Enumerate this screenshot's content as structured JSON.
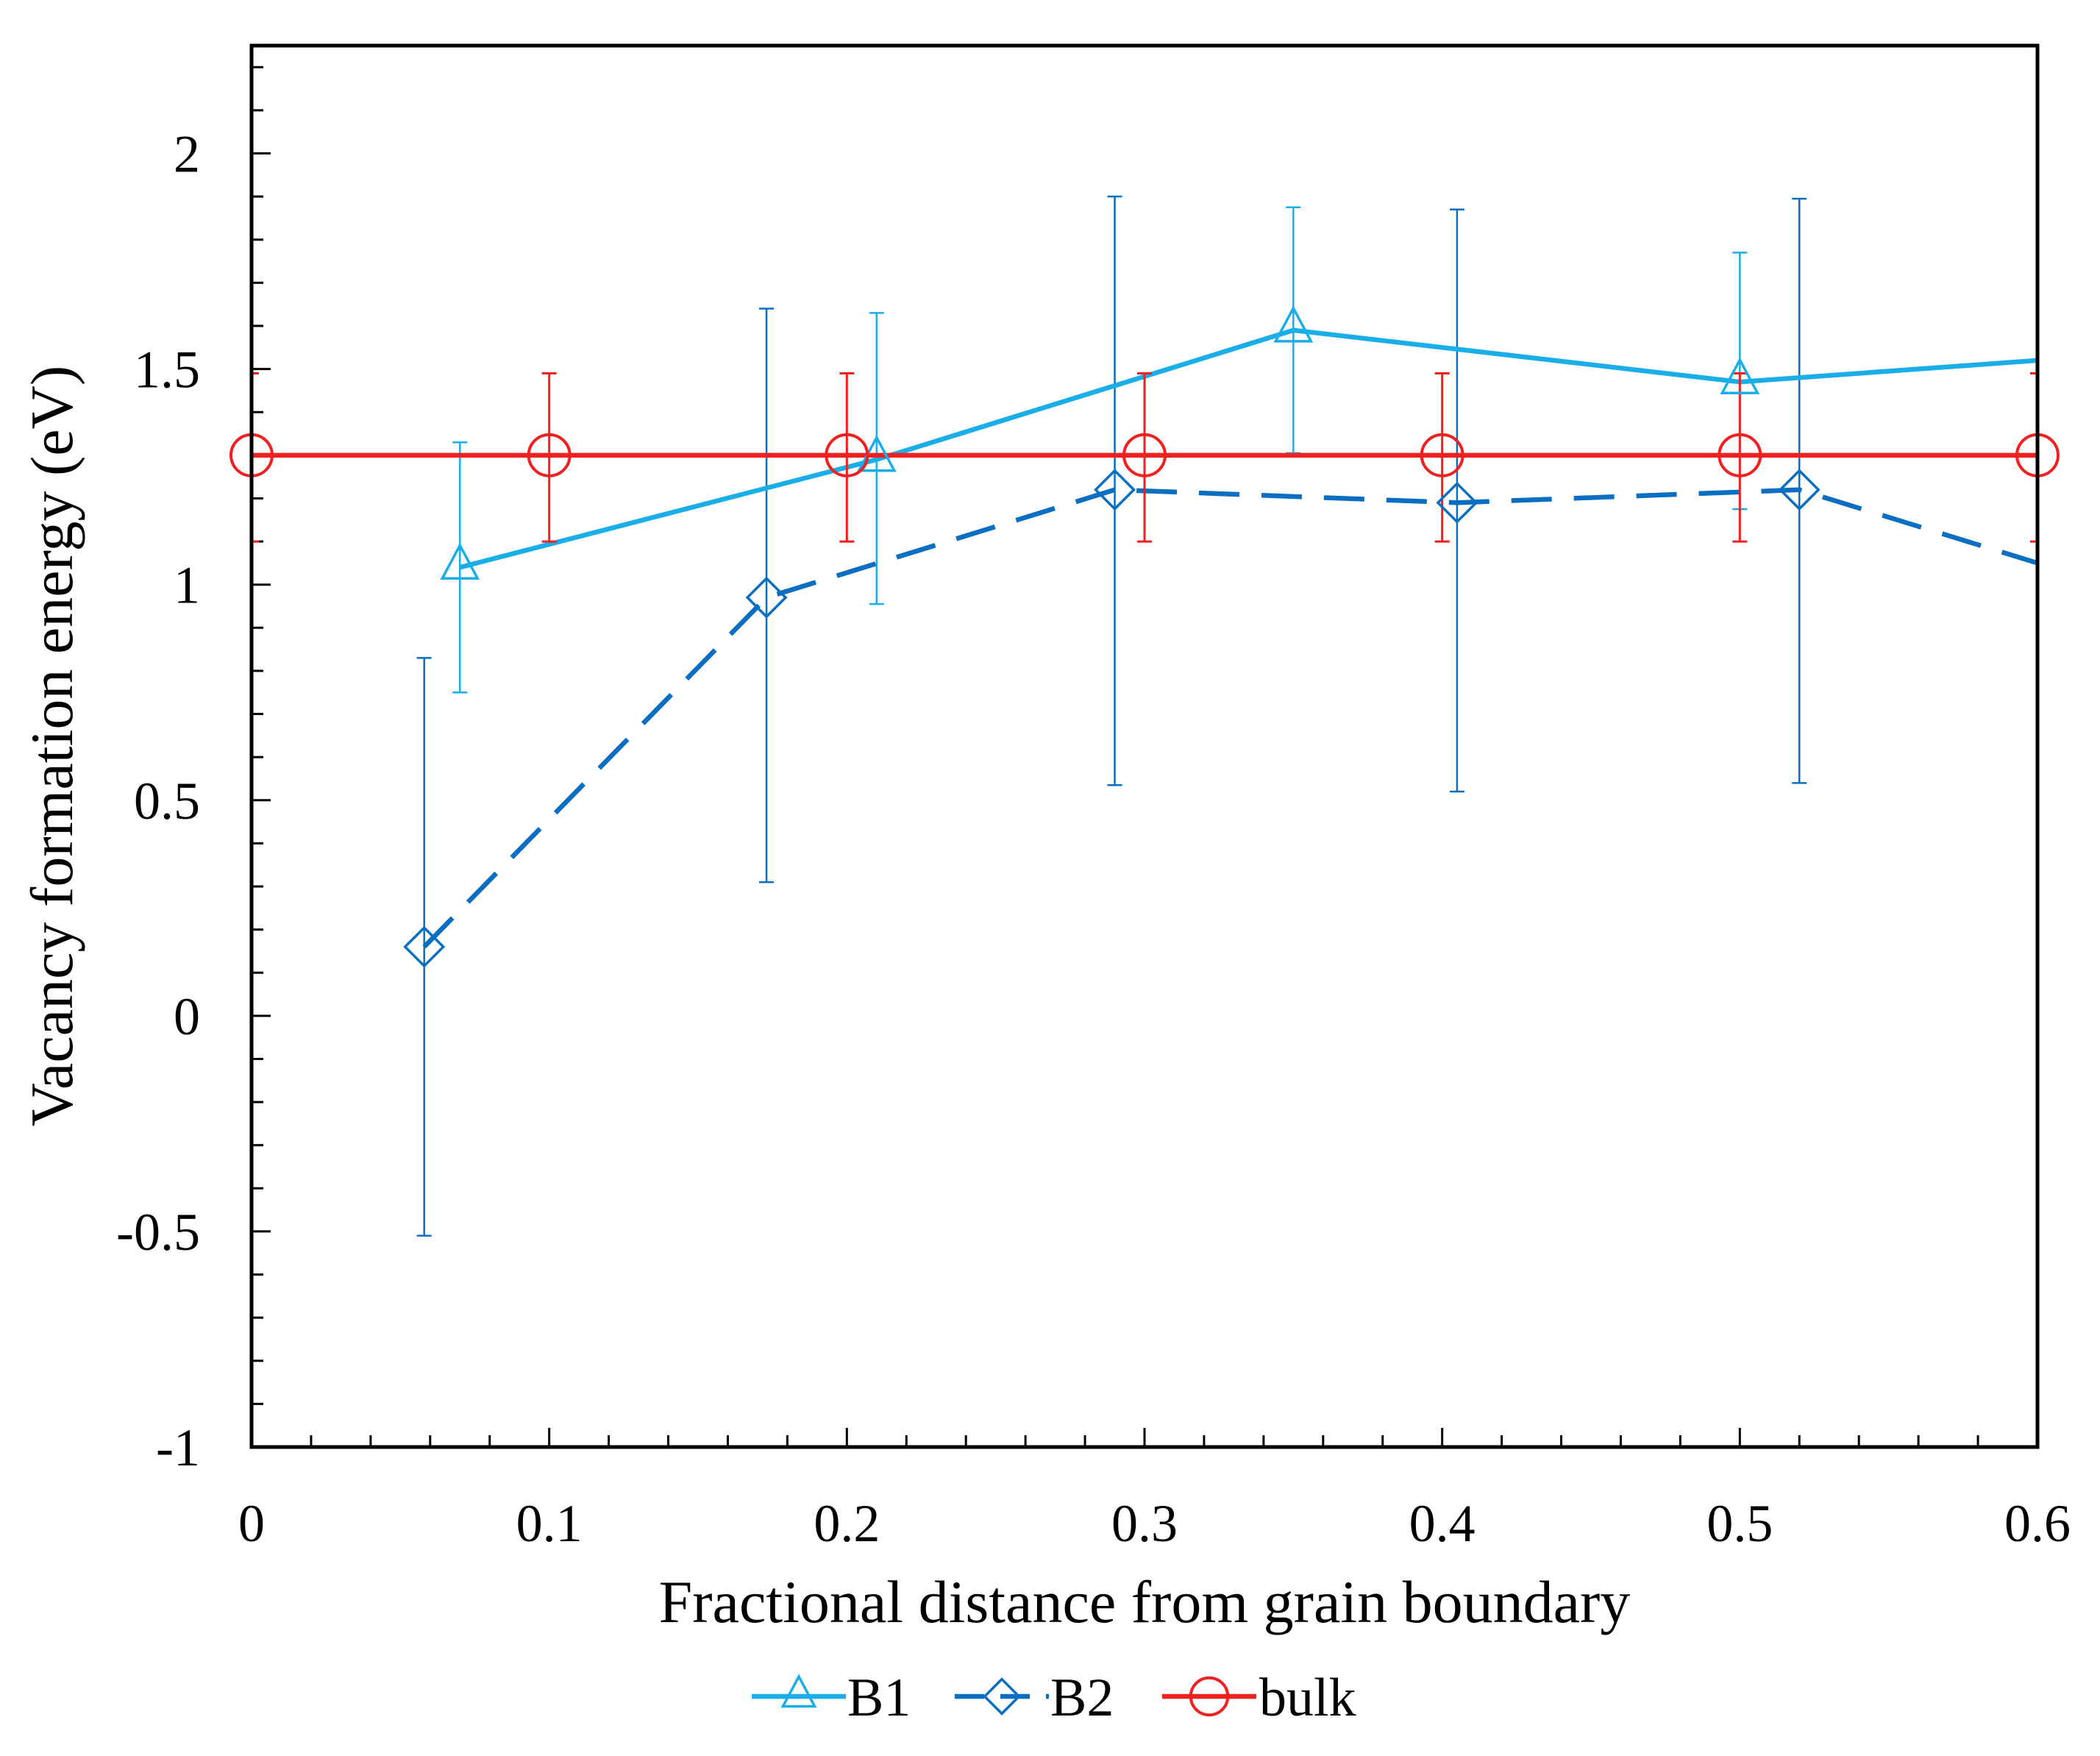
{
  "chart_data": {
    "type": "line",
    "title": "",
    "xlabel": "Fractional distance from grain boundary",
    "ylabel": "Vacancy formation energy (eV)",
    "xlim": [
      0,
      0.6
    ],
    "ylim": [
      -1,
      2.25
    ],
    "xticks": [
      0,
      0.1,
      0.2,
      0.3,
      0.4,
      0.5,
      0.6
    ],
    "xtick_labels": [
      "0",
      "0.1",
      "0.2",
      "0.3",
      "0.4",
      "0.5",
      "0.6"
    ],
    "yticks": [
      -1,
      -0.5,
      0,
      0.5,
      1,
      1.5,
      2
    ],
    "ytick_labels": [
      "-1",
      "-0.5",
      "0",
      "0.5",
      "1",
      "1.5",
      "2"
    ],
    "grid": false,
    "legend_position": "bottom-center",
    "series": [
      {
        "name": "B1",
        "color": "#1AAEE8",
        "line_style": "solid",
        "marker": "triangle",
        "x": [
          0.07,
          0.21,
          0.35,
          0.5,
          0.6
        ],
        "y": [
          1.04,
          1.29,
          1.59,
          1.47,
          1.52
        ],
        "err_low": [
          0.75,
          0.955,
          1.305,
          1.175,
          null
        ],
        "err_high": [
          1.33,
          1.63,
          1.875,
          1.77,
          null
        ]
      },
      {
        "name": "B2",
        "color": "#0A6EC2",
        "line_style": "dashed",
        "marker": "diamond",
        "x": [
          0.058,
          0.173,
          0.29,
          0.405,
          0.52,
          0.6
        ],
        "y": [
          0.16,
          0.97,
          1.22,
          1.19,
          1.22,
          1.05
        ],
        "err_low": [
          -0.51,
          0.31,
          0.535,
          0.52,
          0.54,
          null
        ],
        "err_high": [
          0.83,
          1.64,
          1.9,
          1.87,
          1.895,
          null
        ]
      },
      {
        "name": "bulk",
        "color": "#F02020",
        "line_style": "solid",
        "marker": "circle",
        "x": [
          0,
          0.1,
          0.2,
          0.3,
          0.4,
          0.5,
          0.6
        ],
        "y": [
          1.3,
          1.3,
          1.3,
          1.3,
          1.3,
          1.3,
          1.3
        ],
        "err_low": [
          1.1,
          1.1,
          1.1,
          1.1,
          1.1,
          1.1,
          1.1
        ],
        "err_high": [
          1.49,
          1.49,
          1.49,
          1.49,
          1.49,
          1.49,
          1.49
        ]
      }
    ]
  }
}
